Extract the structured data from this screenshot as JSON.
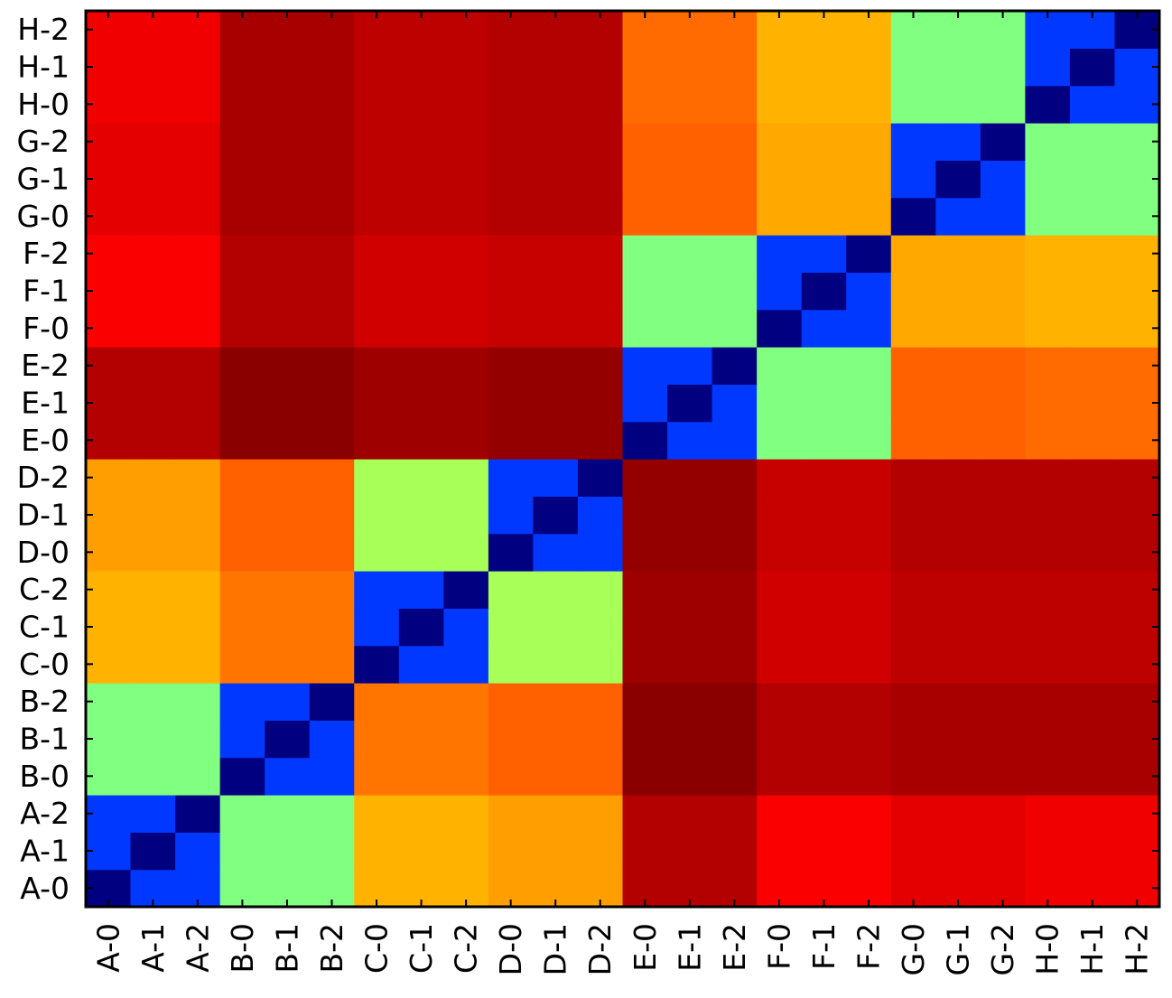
{
  "chart_data": {
    "type": "heatmap",
    "title": "",
    "xlabel": "",
    "ylabel": "",
    "x_categories": [
      "A-0",
      "A-1",
      "A-2",
      "B-0",
      "B-1",
      "B-2",
      "C-0",
      "C-1",
      "C-2",
      "D-0",
      "D-1",
      "D-2",
      "E-0",
      "E-1",
      "E-2",
      "F-0",
      "F-1",
      "F-2",
      "G-0",
      "G-1",
      "G-2",
      "H-0",
      "H-1",
      "H-2"
    ],
    "y_categories": [
      "A-0",
      "A-1",
      "A-2",
      "B-0",
      "B-1",
      "B-2",
      "C-0",
      "C-1",
      "C-2",
      "D-0",
      "D-1",
      "D-2",
      "E-0",
      "E-1",
      "E-2",
      "F-0",
      "F-1",
      "F-2",
      "G-0",
      "G-1",
      "G-2",
      "H-0",
      "H-1",
      "H-2"
    ],
    "colormap": "jet",
    "value_range": [
      0,
      1
    ],
    "values": [
      [
        0.0,
        0.18,
        0.18,
        0.5,
        0.5,
        0.5,
        0.7,
        0.7,
        0.7,
        0.72,
        0.72,
        0.72,
        0.95,
        0.95,
        0.95,
        0.88,
        0.88,
        0.88,
        0.9,
        0.9,
        0.9,
        0.89,
        0.89,
        0.89
      ],
      [
        0.18,
        0.0,
        0.18,
        0.5,
        0.5,
        0.5,
        0.7,
        0.7,
        0.7,
        0.72,
        0.72,
        0.72,
        0.95,
        0.95,
        0.95,
        0.88,
        0.88,
        0.88,
        0.9,
        0.9,
        0.9,
        0.89,
        0.89,
        0.89
      ],
      [
        0.18,
        0.18,
        0.0,
        0.5,
        0.5,
        0.5,
        0.7,
        0.7,
        0.7,
        0.72,
        0.72,
        0.72,
        0.95,
        0.95,
        0.95,
        0.88,
        0.88,
        0.88,
        0.9,
        0.9,
        0.9,
        0.89,
        0.89,
        0.89
      ],
      [
        0.5,
        0.5,
        0.5,
        0.0,
        0.18,
        0.18,
        0.76,
        0.76,
        0.76,
        0.78,
        0.78,
        0.78,
        0.99,
        0.99,
        0.99,
        0.95,
        0.95,
        0.95,
        0.96,
        0.96,
        0.96,
        0.96,
        0.96,
        0.96
      ],
      [
        0.5,
        0.5,
        0.5,
        0.18,
        0.0,
        0.18,
        0.76,
        0.76,
        0.76,
        0.78,
        0.78,
        0.78,
        0.99,
        0.99,
        0.99,
        0.95,
        0.95,
        0.95,
        0.96,
        0.96,
        0.96,
        0.96,
        0.96,
        0.96
      ],
      [
        0.5,
        0.5,
        0.5,
        0.18,
        0.18,
        0.0,
        0.76,
        0.76,
        0.76,
        0.78,
        0.78,
        0.78,
        0.99,
        0.99,
        0.99,
        0.95,
        0.95,
        0.95,
        0.96,
        0.96,
        0.96,
        0.96,
        0.96,
        0.96
      ],
      [
        0.7,
        0.7,
        0.7,
        0.76,
        0.76,
        0.76,
        0.0,
        0.18,
        0.18,
        0.54,
        0.54,
        0.54,
        0.97,
        0.97,
        0.97,
        0.92,
        0.92,
        0.92,
        0.94,
        0.94,
        0.94,
        0.94,
        0.94,
        0.94
      ],
      [
        0.7,
        0.7,
        0.7,
        0.76,
        0.76,
        0.76,
        0.18,
        0.0,
        0.18,
        0.54,
        0.54,
        0.54,
        0.97,
        0.97,
        0.97,
        0.92,
        0.92,
        0.92,
        0.94,
        0.94,
        0.94,
        0.94,
        0.94,
        0.94
      ],
      [
        0.7,
        0.7,
        0.7,
        0.76,
        0.76,
        0.76,
        0.18,
        0.18,
        0.0,
        0.54,
        0.54,
        0.54,
        0.97,
        0.97,
        0.97,
        0.92,
        0.92,
        0.92,
        0.94,
        0.94,
        0.94,
        0.94,
        0.94,
        0.94
      ],
      [
        0.72,
        0.72,
        0.72,
        0.78,
        0.78,
        0.78,
        0.54,
        0.54,
        0.54,
        0.0,
        0.18,
        0.18,
        0.98,
        0.98,
        0.98,
        0.93,
        0.93,
        0.93,
        0.95,
        0.95,
        0.95,
        0.95,
        0.95,
        0.95
      ],
      [
        0.72,
        0.72,
        0.72,
        0.78,
        0.78,
        0.78,
        0.54,
        0.54,
        0.54,
        0.18,
        0.0,
        0.18,
        0.98,
        0.98,
        0.98,
        0.93,
        0.93,
        0.93,
        0.95,
        0.95,
        0.95,
        0.95,
        0.95,
        0.95
      ],
      [
        0.72,
        0.72,
        0.72,
        0.78,
        0.78,
        0.78,
        0.54,
        0.54,
        0.54,
        0.18,
        0.18,
        0.0,
        0.98,
        0.98,
        0.98,
        0.93,
        0.93,
        0.93,
        0.95,
        0.95,
        0.95,
        0.95,
        0.95,
        0.95
      ],
      [
        0.95,
        0.95,
        0.95,
        0.99,
        0.99,
        0.99,
        0.97,
        0.97,
        0.97,
        0.98,
        0.98,
        0.98,
        0.0,
        0.18,
        0.18,
        0.5,
        0.5,
        0.5,
        0.78,
        0.78,
        0.78,
        0.77,
        0.77,
        0.77
      ],
      [
        0.95,
        0.95,
        0.95,
        0.99,
        0.99,
        0.99,
        0.97,
        0.97,
        0.97,
        0.98,
        0.98,
        0.98,
        0.18,
        0.0,
        0.18,
        0.5,
        0.5,
        0.5,
        0.78,
        0.78,
        0.78,
        0.77,
        0.77,
        0.77
      ],
      [
        0.95,
        0.95,
        0.95,
        0.99,
        0.99,
        0.99,
        0.97,
        0.97,
        0.97,
        0.98,
        0.98,
        0.98,
        0.18,
        0.18,
        0.0,
        0.5,
        0.5,
        0.5,
        0.78,
        0.78,
        0.78,
        0.77,
        0.77,
        0.77
      ],
      [
        0.88,
        0.88,
        0.88,
        0.95,
        0.95,
        0.95,
        0.92,
        0.92,
        0.92,
        0.93,
        0.93,
        0.93,
        0.5,
        0.5,
        0.5,
        0.0,
        0.18,
        0.18,
        0.71,
        0.71,
        0.71,
        0.7,
        0.7,
        0.7
      ],
      [
        0.88,
        0.88,
        0.88,
        0.95,
        0.95,
        0.95,
        0.92,
        0.92,
        0.92,
        0.93,
        0.93,
        0.93,
        0.5,
        0.5,
        0.5,
        0.18,
        0.0,
        0.18,
        0.71,
        0.71,
        0.71,
        0.7,
        0.7,
        0.7
      ],
      [
        0.88,
        0.88,
        0.88,
        0.95,
        0.95,
        0.95,
        0.92,
        0.92,
        0.92,
        0.93,
        0.93,
        0.93,
        0.5,
        0.5,
        0.5,
        0.18,
        0.18,
        0.0,
        0.71,
        0.71,
        0.71,
        0.7,
        0.7,
        0.7
      ],
      [
        0.9,
        0.9,
        0.9,
        0.96,
        0.96,
        0.96,
        0.94,
        0.94,
        0.94,
        0.95,
        0.95,
        0.95,
        0.78,
        0.78,
        0.78,
        0.71,
        0.71,
        0.71,
        0.0,
        0.18,
        0.18,
        0.5,
        0.5,
        0.5
      ],
      [
        0.9,
        0.9,
        0.9,
        0.96,
        0.96,
        0.96,
        0.94,
        0.94,
        0.94,
        0.95,
        0.95,
        0.95,
        0.78,
        0.78,
        0.78,
        0.71,
        0.71,
        0.71,
        0.18,
        0.0,
        0.18,
        0.5,
        0.5,
        0.5
      ],
      [
        0.9,
        0.9,
        0.9,
        0.96,
        0.96,
        0.96,
        0.94,
        0.94,
        0.94,
        0.95,
        0.95,
        0.95,
        0.78,
        0.78,
        0.78,
        0.71,
        0.71,
        0.71,
        0.18,
        0.18,
        0.0,
        0.5,
        0.5,
        0.5
      ],
      [
        0.89,
        0.89,
        0.89,
        0.96,
        0.96,
        0.96,
        0.94,
        0.94,
        0.94,
        0.95,
        0.95,
        0.95,
        0.77,
        0.77,
        0.77,
        0.7,
        0.7,
        0.7,
        0.5,
        0.5,
        0.5,
        0.0,
        0.18,
        0.18
      ],
      [
        0.89,
        0.89,
        0.89,
        0.96,
        0.96,
        0.96,
        0.94,
        0.94,
        0.94,
        0.95,
        0.95,
        0.95,
        0.77,
        0.77,
        0.77,
        0.7,
        0.7,
        0.7,
        0.5,
        0.5,
        0.5,
        0.18,
        0.0,
        0.18
      ],
      [
        0.89,
        0.89,
        0.89,
        0.96,
        0.96,
        0.96,
        0.94,
        0.94,
        0.94,
        0.95,
        0.95,
        0.95,
        0.77,
        0.77,
        0.77,
        0.7,
        0.7,
        0.7,
        0.5,
        0.5,
        0.5,
        0.18,
        0.18,
        0.0
      ]
    ],
    "grid": false,
    "legend": "none"
  }
}
